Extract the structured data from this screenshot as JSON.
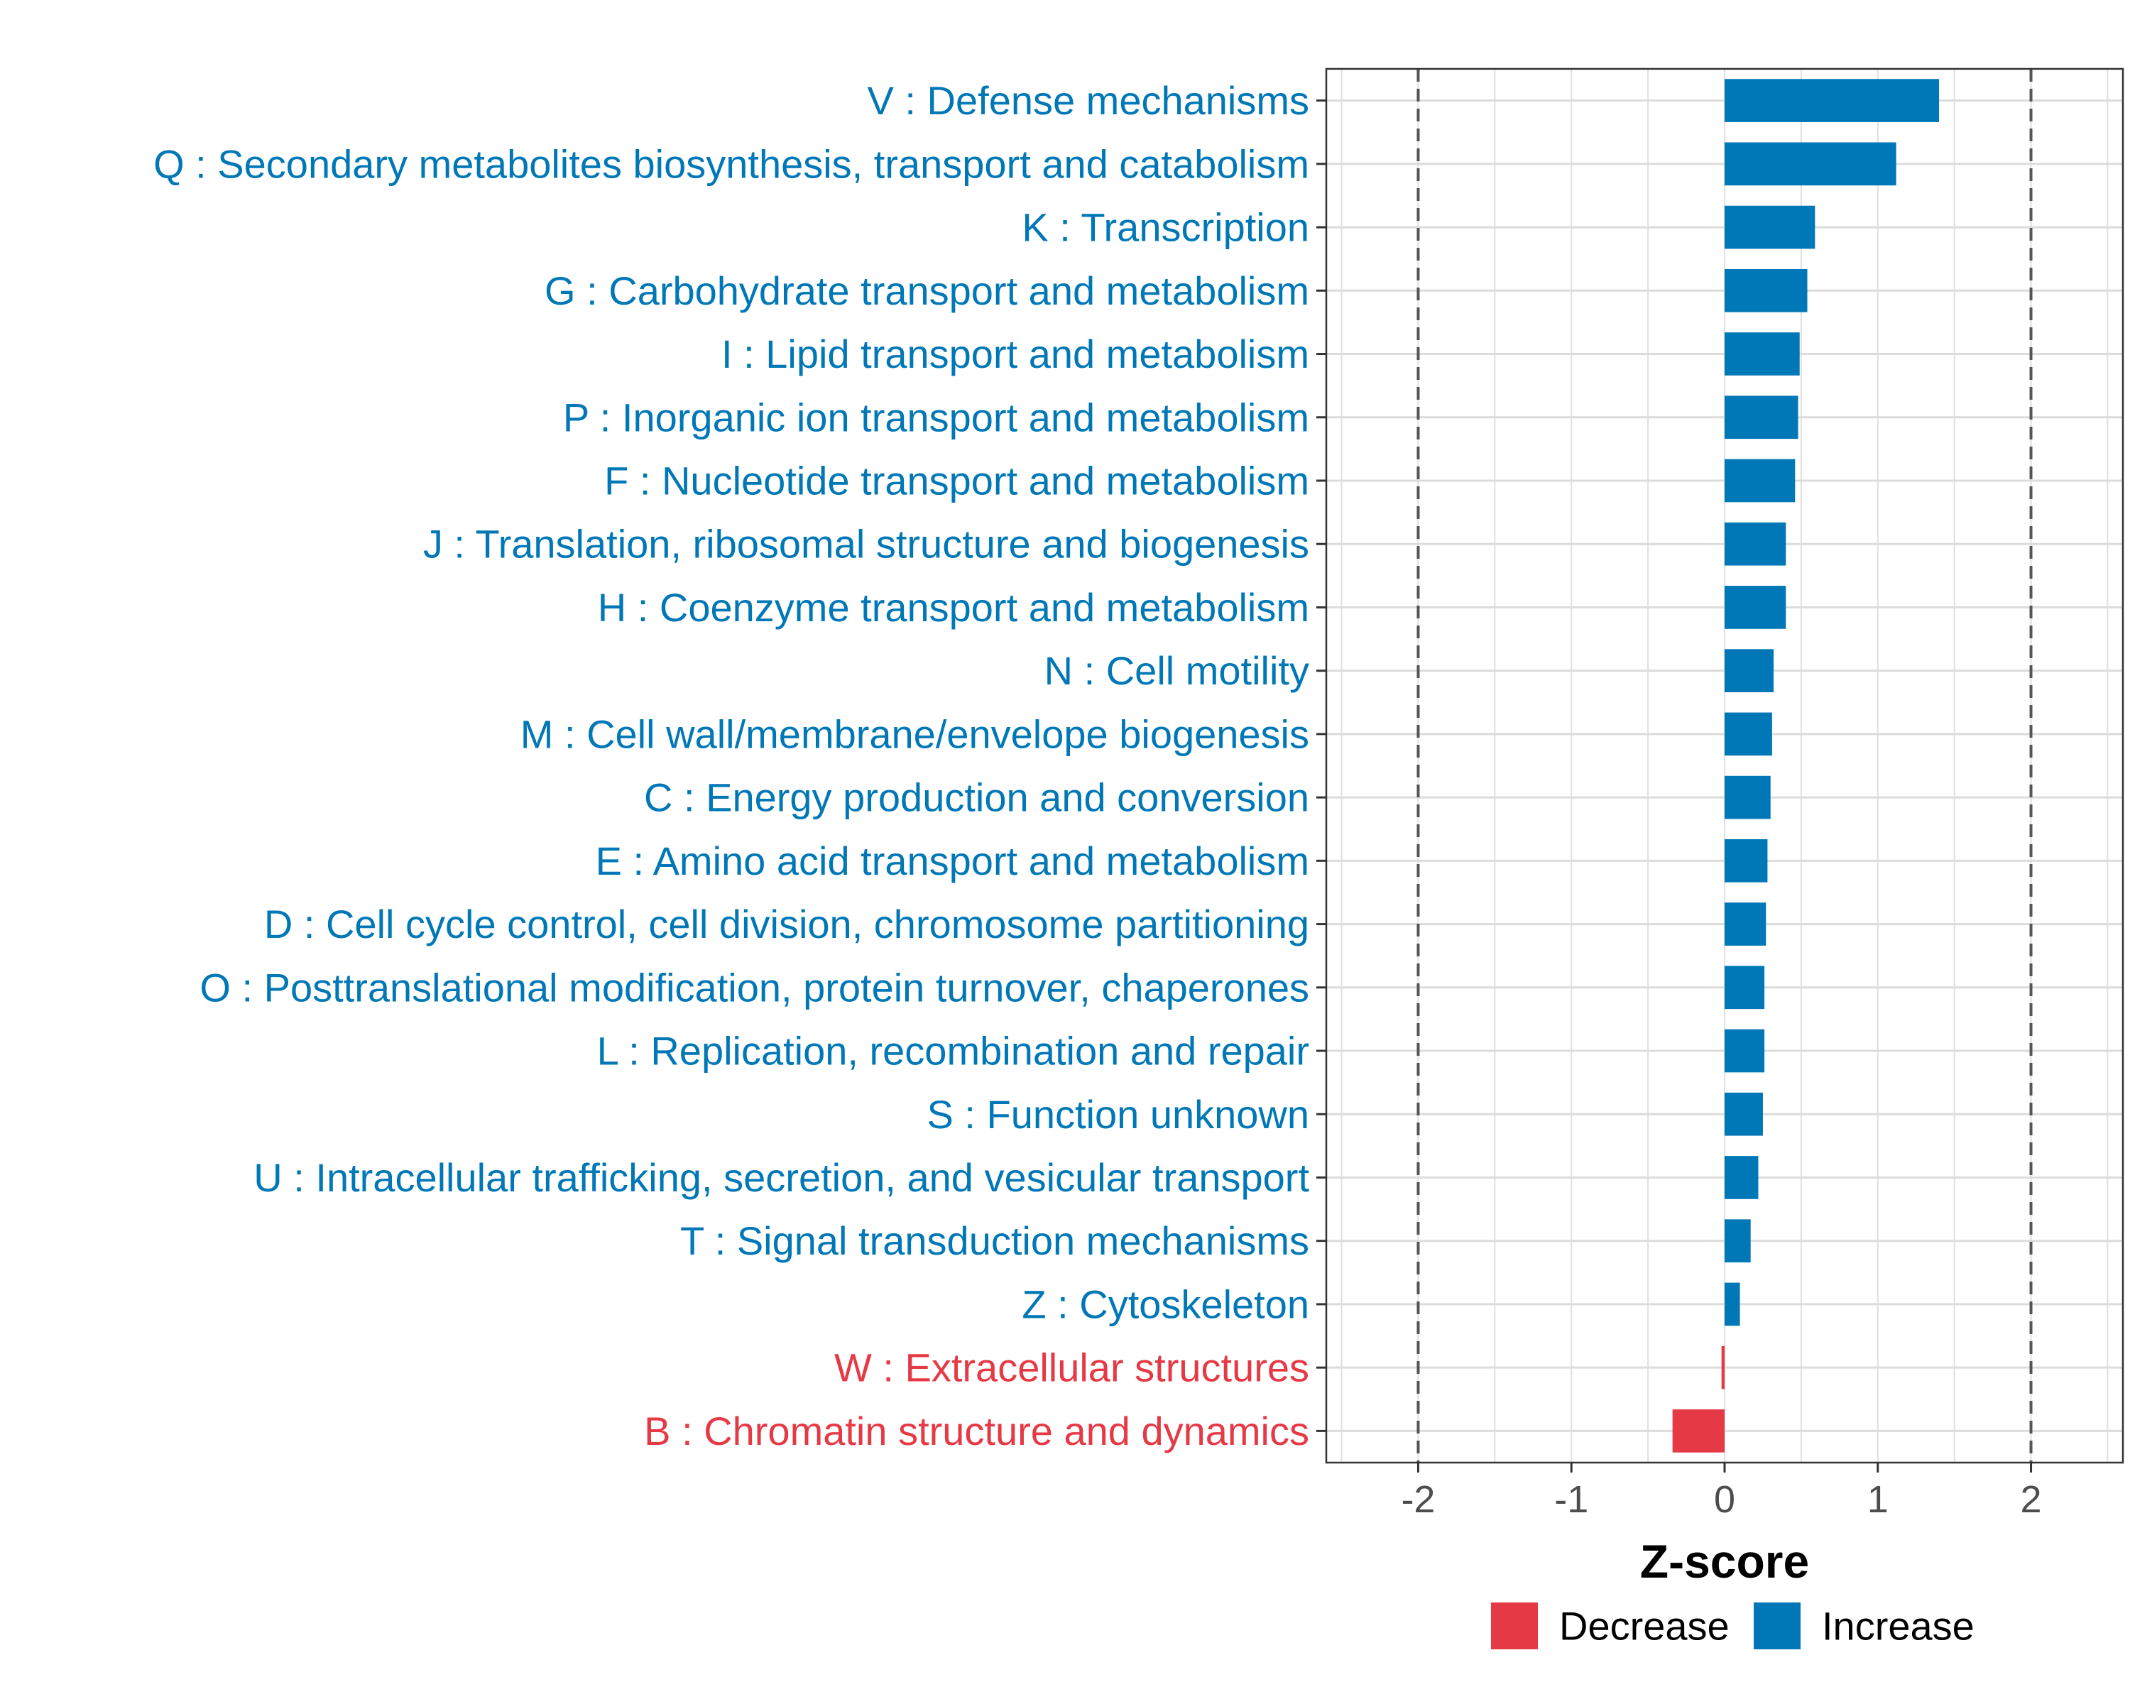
{
  "chart_data": {
    "type": "bar",
    "orientation": "horizontal",
    "xlabel": "Z-score",
    "xlim": [
      -2.6,
      2.6
    ],
    "xticks": [
      -2,
      -1,
      0,
      1,
      2
    ],
    "xtick_labels": [
      "-2",
      "-1",
      "0",
      "1",
      "2"
    ],
    "reference_lines": [
      -2,
      2
    ],
    "grid": true,
    "colors": {
      "Decrease": "#E63946",
      "Increase": "#0077B6"
    },
    "categories": [
      "V : Defense mechanisms",
      "Q : Secondary metabolites biosynthesis, transport and catabolism",
      "K : Transcription",
      "G : Carbohydrate transport and metabolism",
      "I : Lipid transport and metabolism",
      "P : Inorganic ion transport and metabolism",
      "F : Nucleotide transport and metabolism",
      "J : Translation, ribosomal structure and biogenesis",
      "H : Coenzyme transport and metabolism",
      "N : Cell motility",
      "M : Cell wall/membrane/envelope biogenesis",
      "C : Energy production and conversion",
      "E : Amino acid transport and metabolism",
      "D : Cell cycle control, cell division, chromosome partitioning",
      "O : Posttranslational modification, protein turnover, chaperones",
      "L : Replication, recombination and repair",
      "S : Function unknown",
      "U : Intracellular trafficking, secretion, and vesicular transport",
      "T : Signal transduction mechanisms",
      "Z : Cytoskeleton",
      "W : Extracellular structures",
      "B : Chromatin structure and dynamics"
    ],
    "values": [
      1.4,
      1.12,
      0.59,
      0.54,
      0.49,
      0.48,
      0.46,
      0.4,
      0.4,
      0.32,
      0.31,
      0.3,
      0.28,
      0.27,
      0.26,
      0.26,
      0.25,
      0.22,
      0.17,
      0.1,
      -0.02,
      -0.34
    ],
    "direction": [
      "Increase",
      "Increase",
      "Increase",
      "Increase",
      "Increase",
      "Increase",
      "Increase",
      "Increase",
      "Increase",
      "Increase",
      "Increase",
      "Increase",
      "Increase",
      "Increase",
      "Increase",
      "Increase",
      "Increase",
      "Increase",
      "Increase",
      "Increase",
      "Decrease",
      "Decrease"
    ],
    "legend": {
      "position": "bottom",
      "entries": [
        {
          "label": "Decrease",
          "color": "#E63946"
        },
        {
          "label": "Increase",
          "color": "#0077B6"
        }
      ]
    }
  }
}
